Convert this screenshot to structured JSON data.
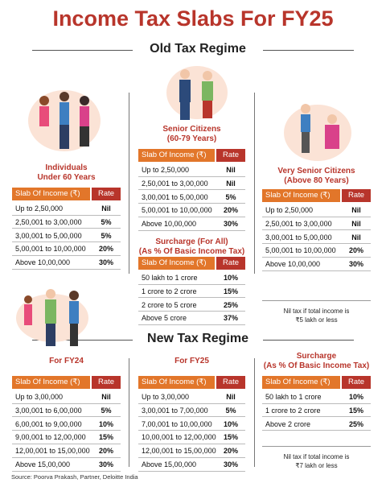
{
  "title": "Income Tax Slabs For FY25",
  "old_regime": {
    "heading": "Old Tax Regime",
    "individuals": {
      "label": [
        "Individuals",
        "Under 60 Years"
      ],
      "header": [
        "Slab Of Income (₹)",
        "Rate"
      ],
      "rows": [
        [
          "Up to 2,50,000",
          "Nil"
        ],
        [
          "2,50,001 to 3,00,000",
          "5%"
        ],
        [
          "3,00,001 to 5,00,000",
          "5%"
        ],
        [
          "5,00,001 to 10,00,000",
          "20%"
        ],
        [
          "Above 10,00,000",
          "30%"
        ]
      ]
    },
    "senior": {
      "label": [
        "Senior Citizens",
        "(60-79 Years)"
      ],
      "header": [
        "Slab Of Income (₹)",
        "Rate"
      ],
      "rows": [
        [
          "Up to 2,50,000",
          "Nil"
        ],
        [
          "2,50,001 to 3,00,000",
          "Nil"
        ],
        [
          "3,00,001 to 5,00,000",
          "5%"
        ],
        [
          "5,00,001 to 10,00,000",
          "20%"
        ],
        [
          "Above 10,00,000",
          "30%"
        ]
      ]
    },
    "very_senior": {
      "label": [
        "Very Senior Citizens",
        "(Above 80 Years)"
      ],
      "header": [
        "Slab Of Income (₹)",
        "Rate"
      ],
      "rows": [
        [
          "Up to 2,50,000",
          "Nil"
        ],
        [
          "2,50,001 to 3,00,000",
          "Nil"
        ],
        [
          "3,00,001 to 5,00,000",
          "Nil"
        ],
        [
          "5,00,001 to 10,00,000",
          "20%"
        ],
        [
          "Above 10,00,000",
          "30%"
        ]
      ]
    },
    "surcharge": {
      "label": [
        "Surcharge (For All)",
        "(As % Of Basic Income Tax)"
      ],
      "header": [
        "Slab Of Income (₹)",
        "Rate"
      ],
      "rows": [
        [
          "50 lakh to 1 crore",
          "10%"
        ],
        [
          "1 crore to 2 crore",
          "15%"
        ],
        [
          "2 crore to 5 crore",
          "25%"
        ],
        [
          "Above 5 crore",
          "37%"
        ]
      ]
    },
    "note": [
      "Nil tax if total income is",
      "₹5 lakh or less"
    ]
  },
  "new_regime": {
    "heading": "New Tax Regime",
    "fy24": {
      "label": [
        "For FY24"
      ],
      "header": [
        "Slab Of Income (₹)",
        "Rate"
      ],
      "rows": [
        [
          "Up to 3,00,000",
          "Nil"
        ],
        [
          "3,00,001 to 6,00,000",
          "5%"
        ],
        [
          "6,00,001 to 9,00,000",
          "10%"
        ],
        [
          "9,00,001 to 12,00,000",
          "15%"
        ],
        [
          "12,00,001 to 15,00,000",
          "20%"
        ],
        [
          "Above 15,00,000",
          "30%"
        ]
      ]
    },
    "fy25": {
      "label": [
        "For FY25"
      ],
      "header": [
        "Slab Of Income (₹)",
        "Rate"
      ],
      "rows": [
        [
          "Up to 3,00,000",
          "Nil"
        ],
        [
          "3,00,001 to 7,00,000",
          "5%"
        ],
        [
          "7,00,001 to 10,00,000",
          "10%"
        ],
        [
          "10,00,001 to 12,00,000",
          "15%"
        ],
        [
          "12,00,001 to 15,00,000",
          "20%"
        ],
        [
          "Above 15,00,000",
          "30%"
        ]
      ]
    },
    "surcharge": {
      "label": [
        "Surcharge",
        "(As % Of Basic Income Tax)"
      ],
      "header": [
        "Slab Of Income (₹)",
        "Rate"
      ],
      "rows": [
        [
          "50 lakh to 1 crore",
          "10%"
        ],
        [
          "1 crore to 2 crore",
          "15%"
        ],
        [
          "Above 2 crore",
          "25%"
        ]
      ]
    },
    "note": [
      "Nil tax if total income is",
      "₹7 lakh or less"
    ]
  },
  "source": "Source: Poorva Prakash, Partner, Deloitte India"
}
